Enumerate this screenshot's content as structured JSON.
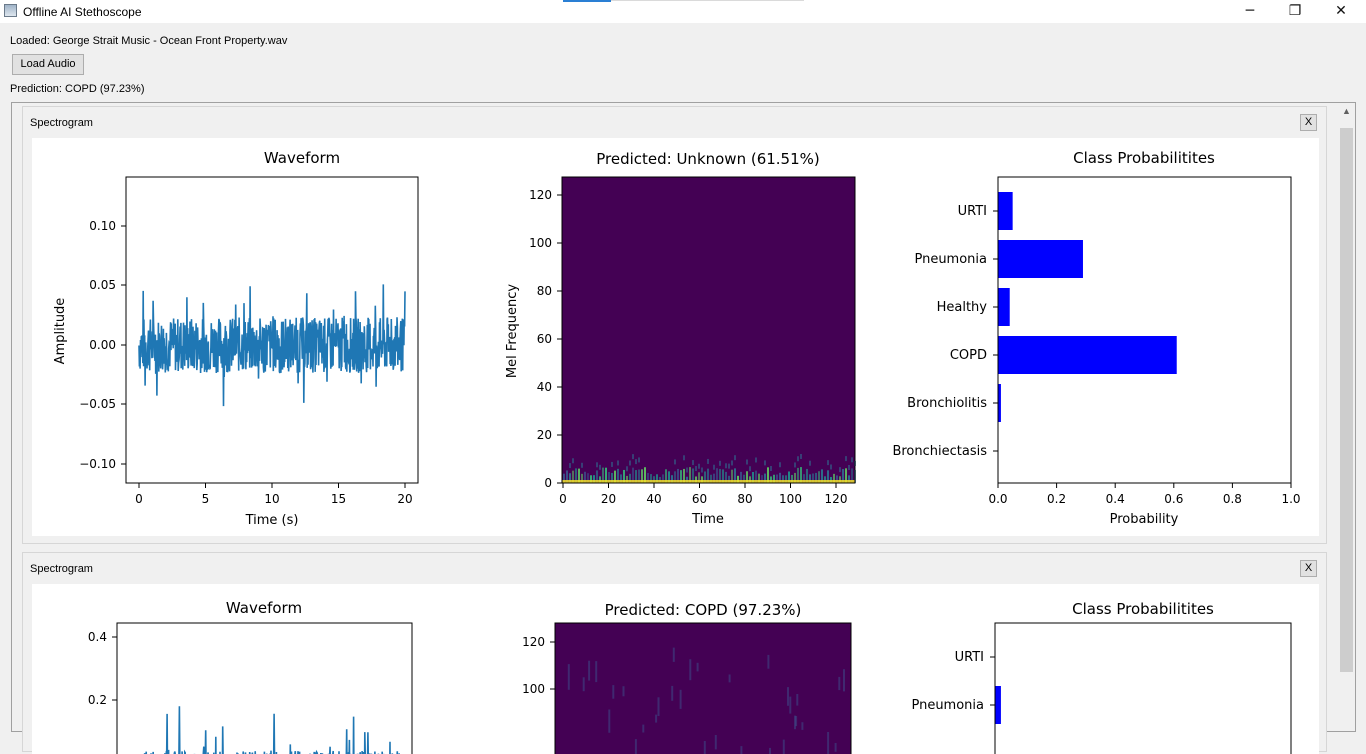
{
  "window": {
    "title": "Offline AI Stethoscope",
    "minimize": "─",
    "maximize": "❐",
    "close": "✕"
  },
  "loaded_label": "Loaded: George Strait Music - Ocean Front Property.wav",
  "load_button": "Load Audio",
  "prediction_label": "Prediction: COPD (97.23%)",
  "panels": [
    {
      "title": "Spectrogram",
      "close": "X",
      "waveform": {
        "title": "Waveform",
        "xlabel": "Time (s)",
        "ylabel": "Amplitude",
        "xticks": [
          "0",
          "5",
          "10",
          "15",
          "20"
        ],
        "yticks": [
          "0.10",
          "0.05",
          "0.00",
          "−0.05",
          "−0.10"
        ]
      },
      "spectrogram": {
        "title": "Predicted: Unknown (61.51%)",
        "xlabel": "Time",
        "ylabel": "Mel Frequency",
        "xticks": [
          "0",
          "20",
          "40",
          "60",
          "80",
          "100",
          "120"
        ],
        "yticks": [
          "120",
          "100",
          "80",
          "60",
          "40",
          "20",
          "0"
        ]
      },
      "probs": {
        "title": "Class Probabilitites",
        "xlabel": "Probability",
        "xticks": [
          "0.0",
          "0.2",
          "0.4",
          "0.6",
          "0.8",
          "1.0"
        ],
        "classes": [
          "URTI",
          "Pneumonia",
          "Healthy",
          "COPD",
          "Bronchiolitis",
          "Bronchiectasis"
        ],
        "values": [
          0.05,
          0.29,
          0.04,
          0.61,
          0.01,
          0.0
        ]
      }
    },
    {
      "title": "Spectrogram",
      "close": "X",
      "waveform": {
        "title": "Waveform",
        "yticks": [
          "0.4",
          "0.2"
        ]
      },
      "spectrogram": {
        "title": "Predicted: COPD (97.23%)",
        "yticks": [
          "120",
          "100"
        ]
      },
      "probs": {
        "title": "Class Probabilitites",
        "classes": [
          "URTI",
          "Pneumonia"
        ],
        "values": [
          0.0,
          0.02
        ]
      }
    }
  ],
  "chart_data": [
    {
      "type": "line",
      "title": "Waveform",
      "xlabel": "Time (s)",
      "ylabel": "Amplitude",
      "xlim": [
        0,
        20
      ],
      "ylim": [
        -0.12,
        0.14
      ],
      "color": "#1f77b4"
    },
    {
      "type": "heatmap",
      "title": "Predicted: Unknown (61.51%)",
      "xlabel": "Time",
      "ylabel": "Mel Frequency",
      "xlim": [
        0,
        128
      ],
      "ylim": [
        0,
        128
      ],
      "colormap": "viridis"
    },
    {
      "type": "bar",
      "title": "Class Probabilitites",
      "xlabel": "Probability",
      "categories": [
        "URTI",
        "Pneumonia",
        "Healthy",
        "COPD",
        "Bronchiolitis",
        "Bronchiectasis"
      ],
      "values": [
        0.05,
        0.29,
        0.04,
        0.61,
        0.01,
        0.0
      ],
      "xlim": [
        0,
        1
      ],
      "color": "#0000ff"
    },
    {
      "type": "line",
      "title": "Waveform",
      "color": "#1f77b4"
    },
    {
      "type": "heatmap",
      "title": "Predicted: COPD (97.23%)",
      "colormap": "viridis"
    },
    {
      "type": "bar",
      "title": "Class Probabilitites",
      "categories": [
        "URTI",
        "Pneumonia"
      ],
      "values": [
        0.0,
        0.02
      ],
      "color": "#0000ff"
    }
  ]
}
